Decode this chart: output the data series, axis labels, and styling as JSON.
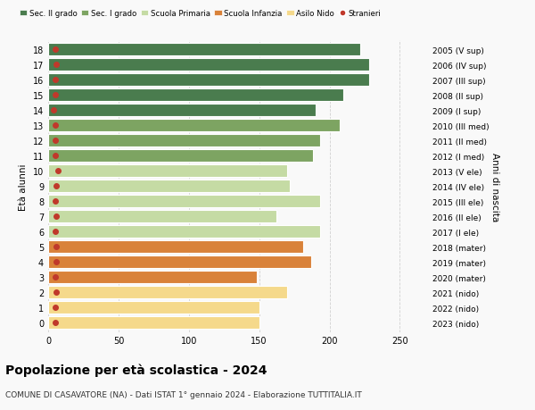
{
  "ages": [
    18,
    17,
    16,
    15,
    14,
    13,
    12,
    11,
    10,
    9,
    8,
    7,
    6,
    5,
    4,
    3,
    2,
    1,
    0
  ],
  "values": [
    222,
    228,
    228,
    210,
    190,
    207,
    193,
    188,
    170,
    172,
    193,
    162,
    193,
    181,
    187,
    148,
    170,
    150,
    150
  ],
  "stranieri": [
    5,
    6,
    5,
    5,
    4,
    5,
    5,
    5,
    7,
    6,
    5,
    6,
    5,
    6,
    6,
    5,
    6,
    5,
    5
  ],
  "right_labels": [
    "2005 (V sup)",
    "2006 (IV sup)",
    "2007 (III sup)",
    "2008 (II sup)",
    "2009 (I sup)",
    "2010 (III med)",
    "2011 (II med)",
    "2012 (I med)",
    "2013 (V ele)",
    "2014 (IV ele)",
    "2015 (III ele)",
    "2016 (II ele)",
    "2017 (I ele)",
    "2018 (mater)",
    "2019 (mater)",
    "2020 (mater)",
    "2021 (nido)",
    "2022 (nido)",
    "2023 (nido)"
  ],
  "bar_colors": [
    "#4a7c4e",
    "#4a7c4e",
    "#4a7c4e",
    "#4a7c4e",
    "#4a7c4e",
    "#7da462",
    "#7da462",
    "#7da462",
    "#c5dba4",
    "#c5dba4",
    "#c5dba4",
    "#c5dba4",
    "#c5dba4",
    "#d9823a",
    "#d9823a",
    "#d9823a",
    "#f5d98b",
    "#f5d98b",
    "#f5d98b"
  ],
  "legend_labels": [
    "Sec. II grado",
    "Sec. I grado",
    "Scuola Primaria",
    "Scuola Infanzia",
    "Asilo Nido",
    "Stranieri"
  ],
  "legend_colors": [
    "#4a7c4e",
    "#7da462",
    "#c5dba4",
    "#d9823a",
    "#f5d98b",
    "#c0392b"
  ],
  "stranieri_color": "#c0392b",
  "title": "Popolazione per età scolastica - 2024",
  "subtitle": "COMUNE DI CASAVATORE (NA) - Dati ISTAT 1° gennaio 2024 - Elaborazione TUTTITALIA.IT",
  "ylabel": "Età alunni",
  "right_ylabel": "Anni di nascita",
  "xlabel_ticks": [
    0,
    50,
    100,
    150,
    200,
    250
  ],
  "xlim": [
    0,
    270
  ],
  "bg_color": "#f9f9f9",
  "grid_color": "#cccccc"
}
